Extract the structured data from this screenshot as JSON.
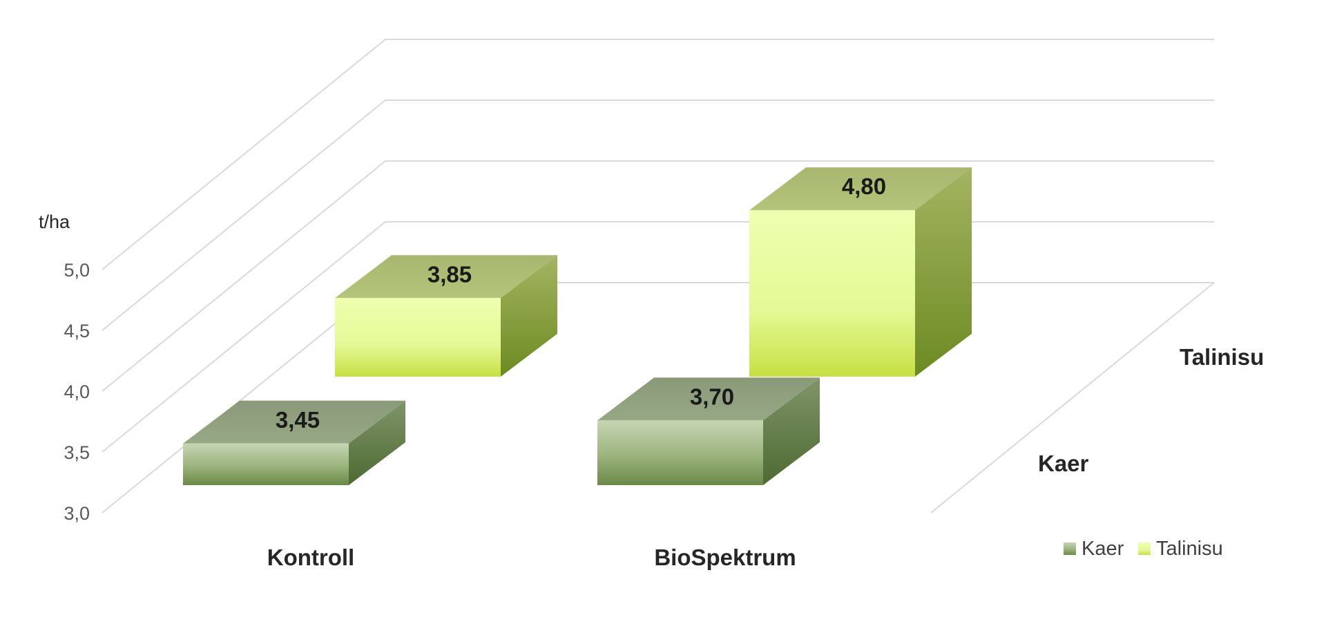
{
  "chart_data": {
    "type": "bar",
    "unit": "t/ha",
    "categories": [
      "Kontroll",
      "BioSpektrum"
    ],
    "series": [
      {
        "name": "Kaer",
        "values": [
          3.45,
          3.7
        ],
        "value_labels": [
          "3,45",
          "3,70"
        ]
      },
      {
        "name": "Talinisu",
        "values": [
          3.85,
          4.8
        ],
        "value_labels": [
          "3,85",
          "4,80"
        ]
      }
    ],
    "depth_labels": [
      "Kaer",
      "Talinisu"
    ],
    "ylim": [
      3.0,
      5.0
    ],
    "y_tick_labels": [
      "3,0",
      "3,5",
      "4,0",
      "4,5",
      "5,0"
    ],
    "grid": true,
    "legend_position": "bottom-right",
    "colors": {
      "Kaer": "#8ba36a",
      "Talinisu": "#e8ff9a",
      "grid": "#d9d9d9"
    }
  }
}
